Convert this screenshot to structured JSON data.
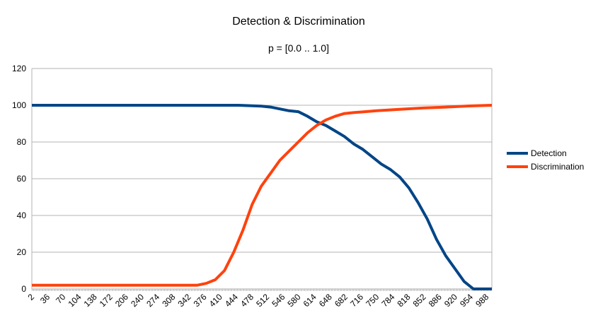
{
  "chart_data": {
    "type": "line",
    "title": "Detection & Discrimination",
    "subtitle": "p = [0.0 .. 1.0]",
    "xlabel": "",
    "ylabel": "",
    "ylim": [
      0,
      120
    ],
    "xlim": [
      2,
      1000
    ],
    "y_ticks": [
      "0",
      "20",
      "40",
      "60",
      "80",
      "100",
      "120"
    ],
    "x_tick_labels": [
      "2",
      "36",
      "70",
      "104",
      "138",
      "172",
      "206",
      "240",
      "274",
      "308",
      "342",
      "376",
      "410",
      "444",
      "478",
      "512",
      "546",
      "580",
      "614",
      "648",
      "682",
      "716",
      "750",
      "784",
      "818",
      "852",
      "886",
      "920",
      "954",
      "988"
    ],
    "grid": "horizontal",
    "legend_position": "right",
    "series": [
      {
        "name": "Detection",
        "color": "#004586",
        "x": [
          2,
          100,
          200,
          300,
          400,
          450,
          500,
          520,
          540,
          560,
          580,
          600,
          620,
          640,
          660,
          680,
          700,
          720,
          740,
          760,
          780,
          800,
          820,
          840,
          860,
          880,
          900,
          920,
          940,
          960,
          980,
          1000
        ],
        "y": [
          100,
          100,
          100,
          100,
          100,
          100,
          99.5,
          99,
          98,
          97,
          96.5,
          94,
          91,
          89,
          86,
          83,
          79,
          76,
          72,
          68,
          65,
          61,
          55,
          47,
          38,
          27,
          18,
          11,
          4,
          0,
          0,
          0
        ]
      },
      {
        "name": "Discrimination",
        "color": "#ff420e",
        "x": [
          2,
          100,
          200,
          300,
          360,
          380,
          400,
          420,
          440,
          460,
          480,
          500,
          520,
          540,
          560,
          580,
          600,
          620,
          640,
          660,
          680,
          700,
          750,
          800,
          850,
          900,
          950,
          1000
        ],
        "y": [
          2,
          2,
          2,
          2,
          2,
          3,
          5,
          10,
          20,
          32,
          46,
          56,
          63,
          70,
          75,
          80,
          85,
          89,
          92,
          94,
          95.5,
          96,
          97,
          97.8,
          98.5,
          99,
          99.6,
          100
        ]
      }
    ]
  }
}
